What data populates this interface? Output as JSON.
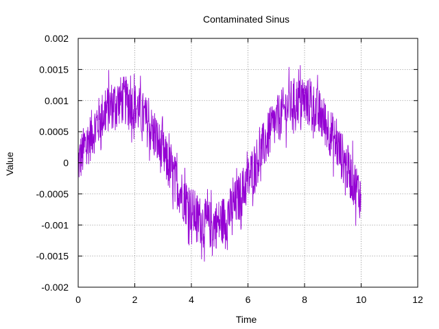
{
  "chart_data": {
    "type": "line",
    "title": "Contaminated Sinus",
    "xlabel": "Time",
    "ylabel": "Value",
    "xlim": [
      0,
      12
    ],
    "ylim": [
      -0.002,
      0.002
    ],
    "x_ticks": [
      "0",
      "2",
      "4",
      "6",
      "8",
      "10",
      "12"
    ],
    "y_ticks": [
      "-0.002",
      "-0.0015",
      "-0.001",
      "-0.0005",
      "0",
      "0.0005",
      "0.001",
      "0.0015",
      "0.002"
    ],
    "grid": true,
    "grid_style": "dotted",
    "legend": "none",
    "series": [
      {
        "color": "#9400d3",
        "x_range": [
          0,
          10
        ],
        "points_per_unit": 100,
        "underlying_signal": "0.001 * sin(x)",
        "noise_amplitude": 0.0008,
        "x": [
          0,
          0.5,
          1,
          1.5,
          2,
          2.5,
          3,
          3.5,
          4,
          4.5,
          5,
          5.5,
          6,
          6.5,
          7,
          7.5,
          8,
          8.5,
          9,
          9.5,
          10
        ],
        "y": [
          0.0,
          0.00048,
          0.00084,
          0.001,
          0.00091,
          0.0006,
          0.00014,
          -0.00035,
          -0.00076,
          -0.00098,
          -0.00096,
          -0.00071,
          -0.00028,
          0.00022,
          0.00066,
          0.00094,
          0.00099,
          0.0008,
          0.00041,
          -8e-05,
          -0.00054
        ]
      }
    ]
  }
}
